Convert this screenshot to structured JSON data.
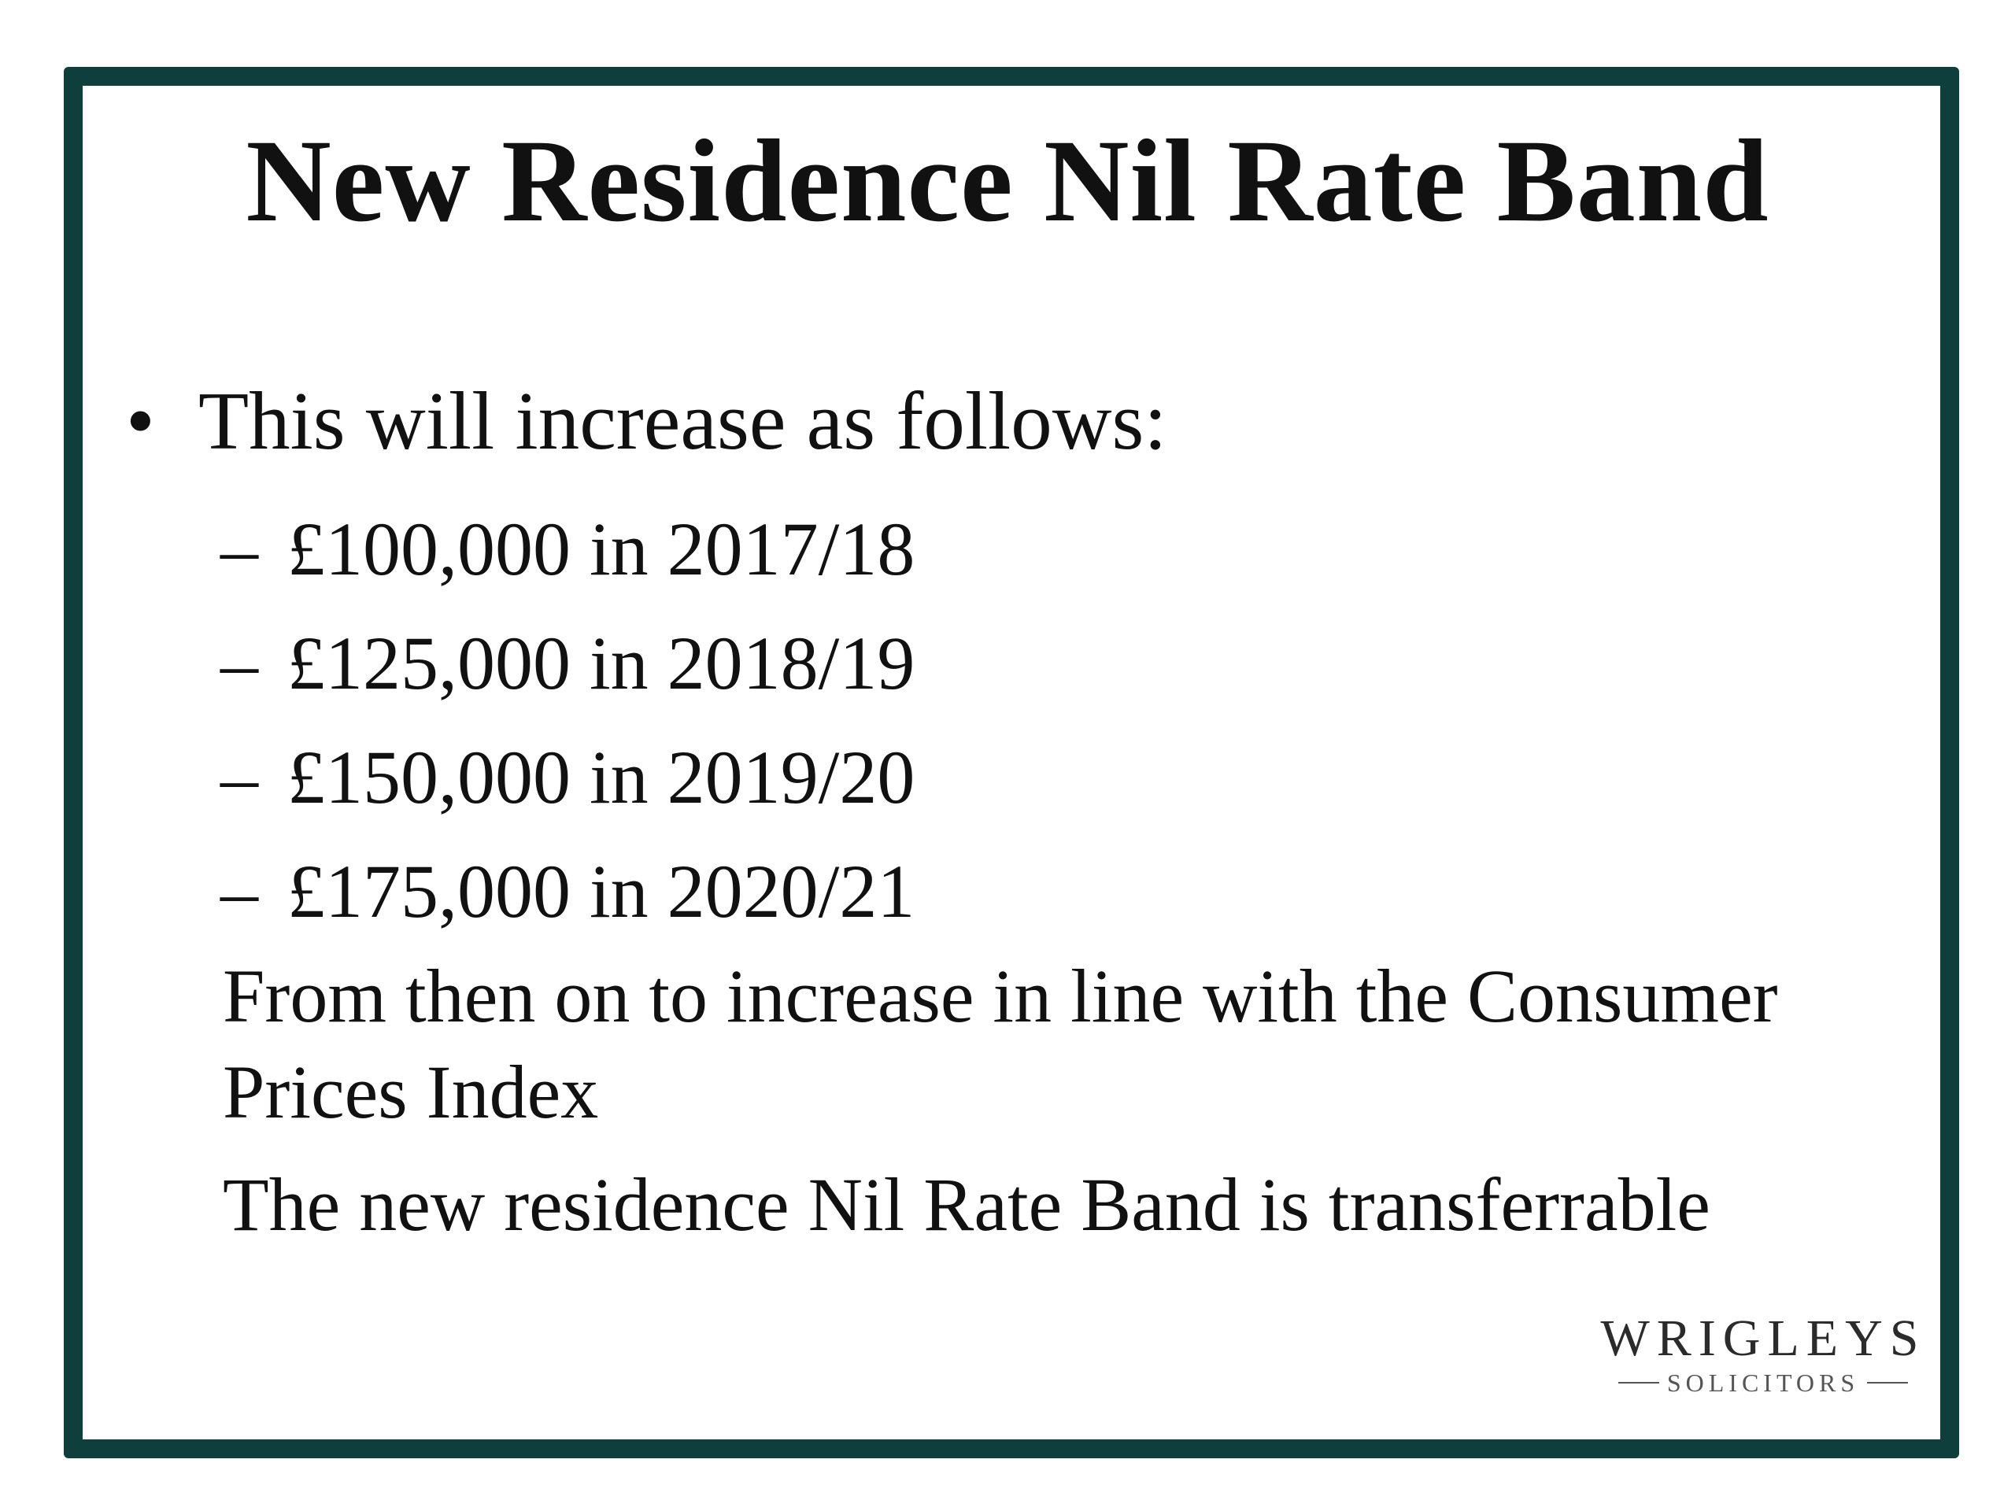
{
  "slide": {
    "title": "New Residence Nil Rate Band",
    "bullet": {
      "marker": "•",
      "text": "This will increase as follows:"
    },
    "sub_items": [
      {
        "marker": "–",
        "text": "£100,000 in 2017/18"
      },
      {
        "marker": "–",
        "text": "£125,000 in 2018/19"
      },
      {
        "marker": "–",
        "text": "£150,000 in 2019/20"
      },
      {
        "marker": "–",
        "text": "£175,000 in 2020/21"
      }
    ],
    "paragraphs": [
      "From then on to increase in line with the Consumer Prices Index",
      "The new residence Nil Rate Band is transferrable"
    ],
    "logo": {
      "name": "WRIGLEYS",
      "subtitle": "SOLICITORS"
    }
  },
  "colors": {
    "frame": "#0e3f3d",
    "text": "#111111",
    "background": "#ffffff"
  }
}
